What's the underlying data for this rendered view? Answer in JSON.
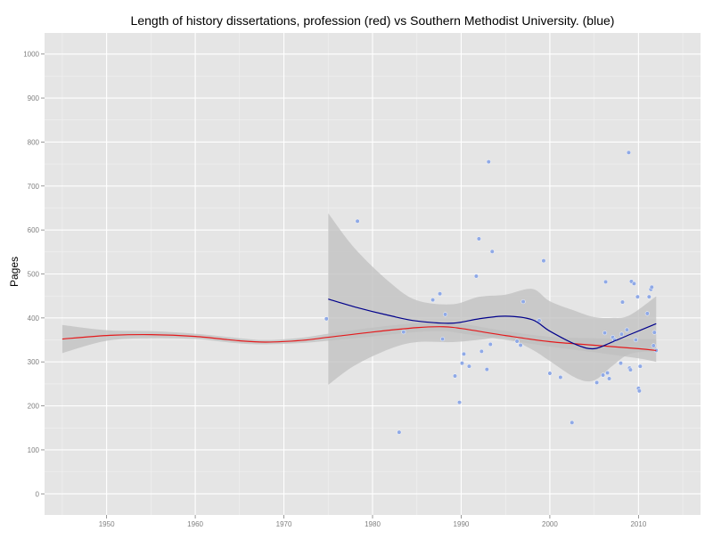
{
  "chart_data": {
    "type": "scatter",
    "title": "Length of history dissertations, profession (red) vs Southern Methodist University. (blue)",
    "xlabel": "",
    "ylabel": "Pages",
    "xlim": [
      1943,
      2017
    ],
    "ylim": [
      -48,
      1048
    ],
    "x_ticks": [
      1950,
      1960,
      1970,
      1980,
      1990,
      2000,
      2010
    ],
    "y_ticks": [
      0,
      100,
      200,
      300,
      400,
      500,
      600,
      700,
      800,
      900,
      1000
    ],
    "grid": true,
    "legend": "none",
    "colors": {
      "panel_background": "#e5e5e5",
      "grid_major": "#ffffff",
      "grid_minor": "#f2f2f2",
      "points": "#8fa9e6",
      "profession_line": "#e41a1c",
      "smu_line": "#00008b",
      "ribbon": "#bfbfbf"
    },
    "series": [
      {
        "type": "scatter",
        "x": [
          1974.8,
          1978.3,
          1983.0,
          1983.5,
          1986.8,
          1987.6,
          1987.9,
          1988.2,
          1989.3,
          1989.8,
          1990.1,
          1990.3,
          1990.9,
          1991.7,
          1992.0,
          1992.3,
          1992.9,
          1993.1,
          1993.3,
          1993.5,
          1996.3,
          1996.7,
          1997.0,
          1998.8,
          1999.3,
          2000.0,
          2001.2,
          2002.5,
          2005.3,
          2006.0,
          2006.2,
          2006.3,
          2006.5,
          2006.7,
          2007.1,
          2007.3,
          2008.0,
          2008.1,
          2008.2,
          2008.7,
          2008.9,
          2009.0,
          2009.1,
          2009.2,
          2009.5,
          2009.7,
          2009.9,
          2010.0,
          2010.1,
          2010.2,
          2011.0,
          2011.2,
          2011.4,
          2011.5,
          2011.7,
          2011.8,
          2012.0
        ],
        "y": [
          398,
          620,
          140,
          368,
          441,
          455,
          352,
          408,
          268,
          208,
          297,
          318,
          290,
          495,
          580,
          324,
          283,
          755,
          340,
          551,
          347,
          338,
          437,
          394,
          530,
          274,
          265,
          162,
          253,
          270,
          366,
          482,
          275,
          262,
          356,
          350,
          297,
          363,
          436,
          373,
          776,
          286,
          282,
          483,
          478,
          350,
          448,
          240,
          234,
          290,
          410,
          448,
          465,
          470,
          337,
          367,
          326
        ]
      },
      {
        "name": "",
        "type": "line",
        "x": [
          1945,
          1950,
          1955,
          1960,
          1965,
          1968,
          1972,
          1975,
          1980,
          1985,
          1988,
          1990,
          1995,
          2000,
          2005,
          2010,
          2012
        ],
        "y": [
          352,
          360,
          362,
          358,
          348,
          345,
          349,
          356,
          368,
          378,
          380,
          376,
          360,
          346,
          338,
          330,
          326
        ],
        "band_lower": [
          320,
          348,
          354,
          352,
          342,
          340,
          343,
          348,
          358,
          368,
          370,
          365,
          350,
          335,
          322,
          308,
          300
        ],
        "band_upper": [
          384,
          372,
          370,
          364,
          354,
          350,
          355,
          364,
          378,
          388,
          390,
          387,
          370,
          357,
          354,
          352,
          352
        ]
      },
      {
        "name": "",
        "type": "line",
        "x": [
          1975,
          1978,
          1982,
          1985,
          1989,
          1992,
          1995,
          1998,
          2000,
          2003,
          2005,
          2007,
          2009,
          2012
        ],
        "y": [
          443,
          425,
          405,
          393,
          388,
          398,
          404,
          396,
          370,
          339,
          330,
          345,
          362,
          387
        ],
        "band_lower": [
          248,
          292,
          330,
          345,
          345,
          350,
          355,
          328,
          302,
          263,
          258,
          290,
          318,
          325
        ],
        "band_upper": [
          638,
          558,
          480,
          440,
          431,
          448,
          453,
          466,
          438,
          415,
          402,
          400,
          406,
          449
        ]
      }
    ]
  }
}
